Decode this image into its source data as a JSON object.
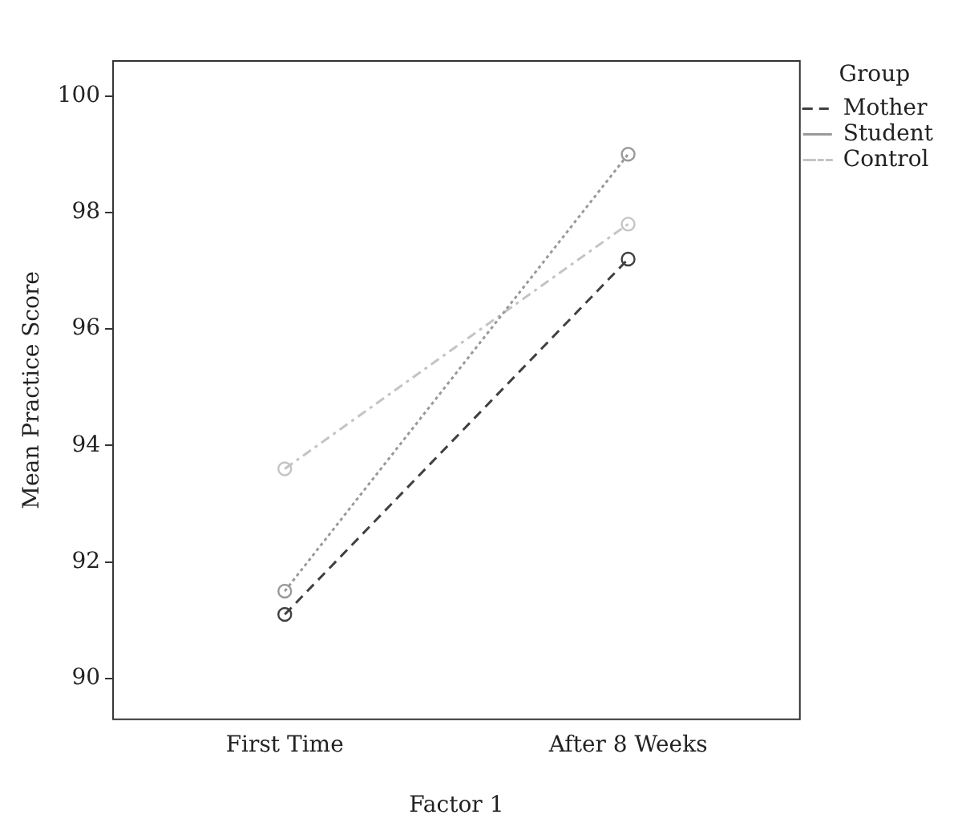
{
  "chart_data": {
    "type": "line",
    "xlabel": "Factor 1",
    "ylabel": "Mean Practice Score",
    "legend_title": "Group",
    "categories": [
      "First Time",
      "After 8 Weeks"
    ],
    "series": [
      {
        "name": "Mother",
        "color": "#404040",
        "values": [
          91.1,
          97.2
        ],
        "line_style": "dashed"
      },
      {
        "name": "Student",
        "color": "#999999",
        "values": [
          91.5,
          99.0
        ],
        "line_style": "dotted"
      },
      {
        "name": "Control",
        "color": "#c4c4c4",
        "values": [
          93.6,
          97.8
        ],
        "line_style": "dashdot"
      }
    ],
    "ylim": [
      89.3,
      100.6
    ],
    "yticks": [
      90,
      92,
      94,
      96,
      98,
      100
    ],
    "grid": false,
    "legend": "top right",
    "marker": "circle"
  }
}
